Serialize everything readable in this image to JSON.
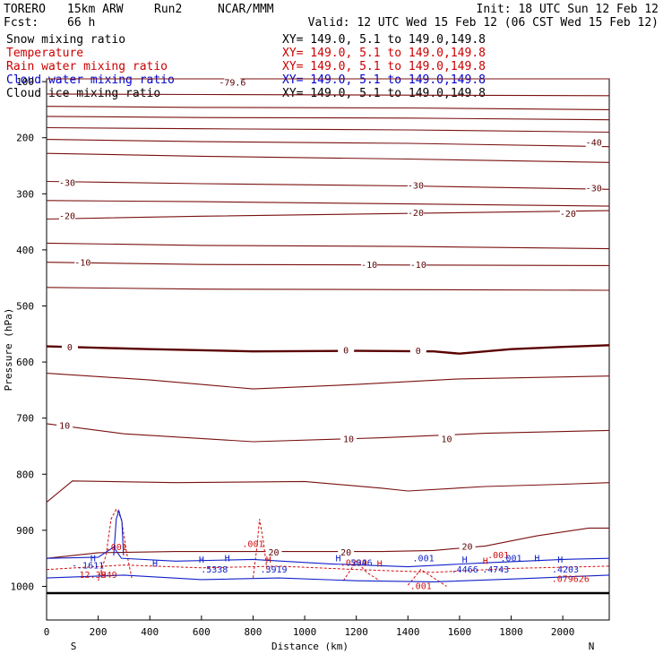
{
  "header": {
    "model": "TORERO",
    "resolution": "15km ARW",
    "run": "Run2",
    "org": "NCAR/MMM",
    "init": "Init: 18 UTC Sun 12 Feb 12",
    "fcst_label": "Fcst:",
    "fcst_hours": "66 h",
    "valid": "Valid: 12 UTC Wed 15 Feb 12 (06 CST Wed 15 Feb 12)"
  },
  "fields": [
    {
      "name": "Snow mixing ratio",
      "color": "#000000",
      "xy": "XY= 149.0,  5.1 to 149.0,149.8"
    },
    {
      "name": "Temperature",
      "color": "#cc0000",
      "xy": "XY= 149.0,  5.1 to 149.0,149.8"
    },
    {
      "name": "Rain water mixing ratio",
      "color": "#cc0000",
      "xy": "XY= 149.0,  5.1 to 149.0,149.8"
    },
    {
      "name": "Cloud water mixing ratio",
      "color": "#0000cc",
      "xy": "XY= 149.0,  5.1 to 149.0,149.8"
    },
    {
      "name": "Cloud ice mixing ratio",
      "color": "#000000",
      "xy": "XY= 149.0,  5.1 to 149.0,149.8"
    }
  ],
  "chart_data": {
    "type": "contour-cross-section",
    "xlabel": "Distance (km)",
    "ylabel": "Pressure (hPa)",
    "xlim": [
      0,
      2180
    ],
    "ylim": [
      1060,
      95
    ],
    "x_ticks": [
      "0",
      "200",
      "400",
      "600",
      "800",
      "1000",
      "1200",
      "1400",
      "1600",
      "1800",
      "2000"
    ],
    "y_ticks": [
      "100",
      "200",
      "300",
      "400",
      "500",
      "600",
      "700",
      "800",
      "900",
      "1000"
    ],
    "end_labels": {
      "left": "S",
      "right": "N"
    },
    "temperature_contours": [
      {
        "level": "-79.6",
        "label_at": [
          [
            720,
            102
          ]
        ],
        "points": [
          [
            0,
            95
          ],
          [
            2180,
            95
          ]
        ]
      },
      {
        "level": "",
        "points": [
          [
            0,
            122
          ],
          [
            600,
            123
          ],
          [
            1400,
            124
          ],
          [
            2180,
            125
          ]
        ]
      },
      {
        "level": "",
        "points": [
          [
            0,
            144
          ],
          [
            600,
            146
          ],
          [
            1400,
            147
          ],
          [
            2180,
            150
          ]
        ]
      },
      {
        "level": "",
        "points": [
          [
            0,
            162
          ],
          [
            600,
            164
          ],
          [
            1400,
            165
          ],
          [
            2180,
            168
          ]
        ]
      },
      {
        "level": "",
        "points": [
          [
            0,
            182
          ],
          [
            600,
            184
          ],
          [
            1400,
            186
          ],
          [
            2180,
            190
          ]
        ]
      },
      {
        "level": "-40",
        "label_at": [
          [
            2120,
            209
          ]
        ],
        "points": [
          [
            0,
            203
          ],
          [
            600,
            207
          ],
          [
            1400,
            210
          ],
          [
            2180,
            216
          ]
        ]
      },
      {
        "level": "",
        "points": [
          [
            0,
            228
          ],
          [
            600,
            233
          ],
          [
            1400,
            238
          ],
          [
            2180,
            244
          ]
        ]
      },
      {
        "level": "-30",
        "label_at": [
          [
            80,
            281
          ],
          [
            1430,
            286
          ],
          [
            2120,
            291
          ]
        ],
        "points": [
          [
            0,
            278
          ],
          [
            600,
            282
          ],
          [
            1400,
            286
          ],
          [
            2180,
            292
          ]
        ]
      },
      {
        "level": "",
        "points": [
          [
            0,
            312
          ],
          [
            600,
            314
          ],
          [
            1400,
            318
          ],
          [
            2180,
            322
          ]
        ]
      },
      {
        "level": "-20",
        "label_at": [
          [
            80,
            340
          ],
          [
            1430,
            335
          ],
          [
            2020,
            336
          ]
        ],
        "points": [
          [
            0,
            345
          ],
          [
            600,
            340
          ],
          [
            1400,
            335
          ],
          [
            2180,
            330
          ]
        ]
      },
      {
        "level": "",
        "points": [
          [
            0,
            388
          ],
          [
            600,
            392
          ],
          [
            1400,
            394
          ],
          [
            2180,
            398
          ]
        ]
      },
      {
        "level": "-10",
        "label_at": [
          [
            140,
            423
          ],
          [
            1250,
            427
          ],
          [
            1440,
            427
          ]
        ],
        "points": [
          [
            0,
            422
          ],
          [
            600,
            426
          ],
          [
            1400,
            427
          ],
          [
            2180,
            428
          ]
        ]
      },
      {
        "level": "",
        "points": [
          [
            0,
            467
          ],
          [
            600,
            470
          ],
          [
            1400,
            471
          ],
          [
            2180,
            472
          ]
        ]
      },
      {
        "level": "0",
        "bold": true,
        "label_at": [
          [
            90,
            574
          ],
          [
            1160,
            580
          ],
          [
            1440,
            581
          ]
        ],
        "points": [
          [
            0,
            572
          ],
          [
            400,
            577
          ],
          [
            800,
            581
          ],
          [
            1200,
            580
          ],
          [
            1500,
            581
          ],
          [
            1600,
            585
          ],
          [
            1800,
            577
          ],
          [
            2000,
            573
          ],
          [
            2180,
            570
          ]
        ]
      },
      {
        "level": "",
        "points": [
          [
            0,
            620
          ],
          [
            400,
            632
          ],
          [
            800,
            648
          ],
          [
            1200,
            640
          ],
          [
            1600,
            630
          ],
          [
            2180,
            625
          ]
        ]
      },
      {
        "level": "10",
        "label_at": [
          [
            70,
            714
          ],
          [
            1170,
            738
          ],
          [
            1550,
            738
          ]
        ],
        "points": [
          [
            0,
            710
          ],
          [
            300,
            728
          ],
          [
            800,
            742
          ],
          [
            1300,
            735
          ],
          [
            1700,
            727
          ],
          [
            2180,
            722
          ]
        ]
      },
      {
        "level": "",
        "points": [
          [
            0,
            850
          ],
          [
            100,
            812
          ],
          [
            500,
            815
          ],
          [
            1000,
            813
          ],
          [
            1300,
            825
          ],
          [
            1400,
            830
          ],
          [
            1700,
            822
          ],
          [
            2000,
            818
          ],
          [
            2180,
            815
          ]
        ]
      },
      {
        "level": "20",
        "label_at": [
          [
            880,
            940
          ],
          [
            1160,
            940
          ],
          [
            1630,
            930
          ]
        ],
        "points": [
          [
            0,
            950
          ],
          [
            200,
            940
          ],
          [
            500,
            938
          ],
          [
            900,
            938
          ],
          [
            1300,
            938
          ],
          [
            1500,
            936
          ],
          [
            1700,
            928
          ],
          [
            1900,
            910
          ],
          [
            2100,
            896
          ],
          [
            2180,
            896
          ]
        ]
      },
      {
        "level": "",
        "points": [
          [
            0,
            1012
          ],
          [
            2180,
            1012
          ]
        ]
      }
    ],
    "rain_labels": [
      "12.3949",
      ".001",
      ".001",
      ".0239",
      ".001",
      ".001",
      ".079626"
    ],
    "cloud_water_labels": [
      "-.1611",
      ".5338",
      ".3919",
      ".5046",
      ".001",
      ".4466",
      ".4743",
      ".001",
      ".4203"
    ],
    "cloud_markers": [
      "H",
      "H",
      "H",
      "H",
      "H",
      "H",
      "H",
      "H",
      "H",
      "H",
      "H",
      "H"
    ],
    "surface_pressure_hpa": 1012
  }
}
